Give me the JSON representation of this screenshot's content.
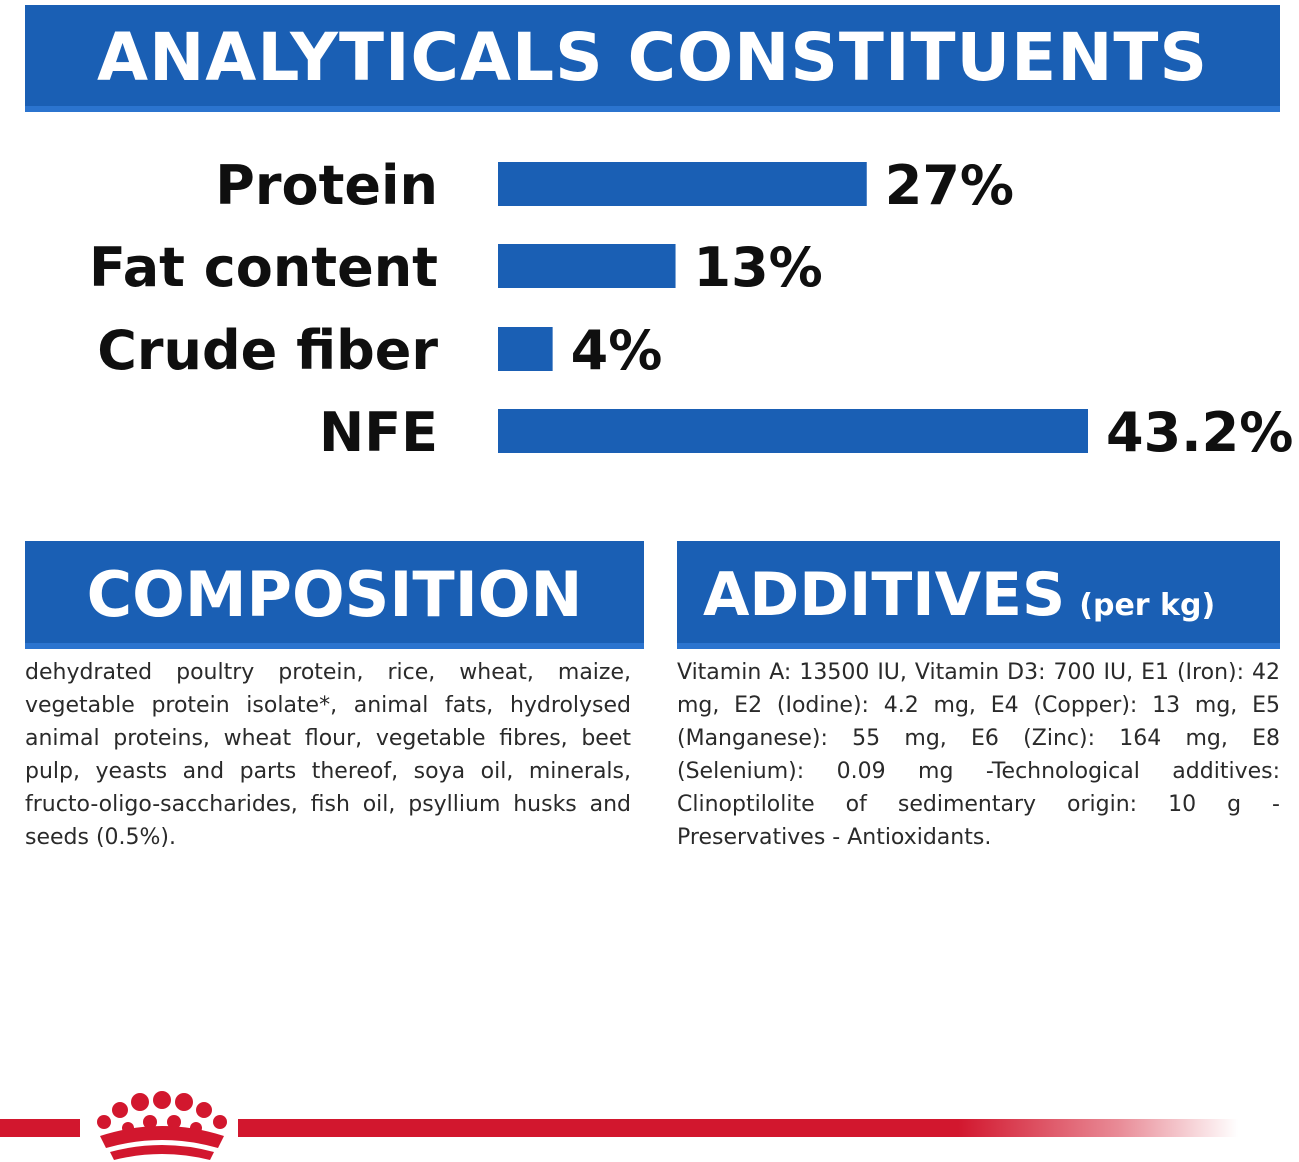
{
  "banners": {
    "analytical": "ANALYTICALS CONSTITUENTS",
    "composition": "COMPOSITION",
    "additives": "ADDITIVES",
    "additives_unit": "(per kg)"
  },
  "composition_text": "dehydrated poultry protein, rice, wheat, maize, vegetable protein isolate*, animal fats, hydrolysed animal proteins, wheat flour, vegetable fibres, beet pulp, yeasts and parts thereof, soya oil, minerals, fructo-oligo-saccharides, fish oil, psyllium husks and seeds (0.5%).",
  "additives_text": "Vitamin A: 13500 IU, Vitamin D3: 700 IU, E1 (Iron): 42 mg, E2 (Iodine): 4.2 mg, E4 (Copper): 13 mg, E5 (Manganese): 55 mg, E6 (Zinc): 164 mg, E8 (Selenium): 0.09 mg -Technological additives: Clinoptilolite of sedimentary origin: 10 g - Preservatives - Antioxidants.",
  "colors": {
    "primary_blue": "#1a5fb4",
    "bar_blue": "#1a5fb4",
    "brand_red": "#d2172e"
  },
  "icons": {
    "logo": "royal-canin-crown-icon"
  },
  "chart_data": {
    "type": "bar",
    "orientation": "horizontal",
    "title": "ANALYTICALS CONSTITUENTS",
    "categories": [
      "Protein",
      "Fat content",
      "Crude fiber",
      "NFE"
    ],
    "values": [
      27,
      13,
      4,
      43.2
    ],
    "value_labels": [
      "27%",
      "13%",
      "4%",
      "43.2%"
    ],
    "xlabel": "",
    "ylabel": "",
    "xlim": [
      0,
      43.2
    ],
    "grid": false
  }
}
